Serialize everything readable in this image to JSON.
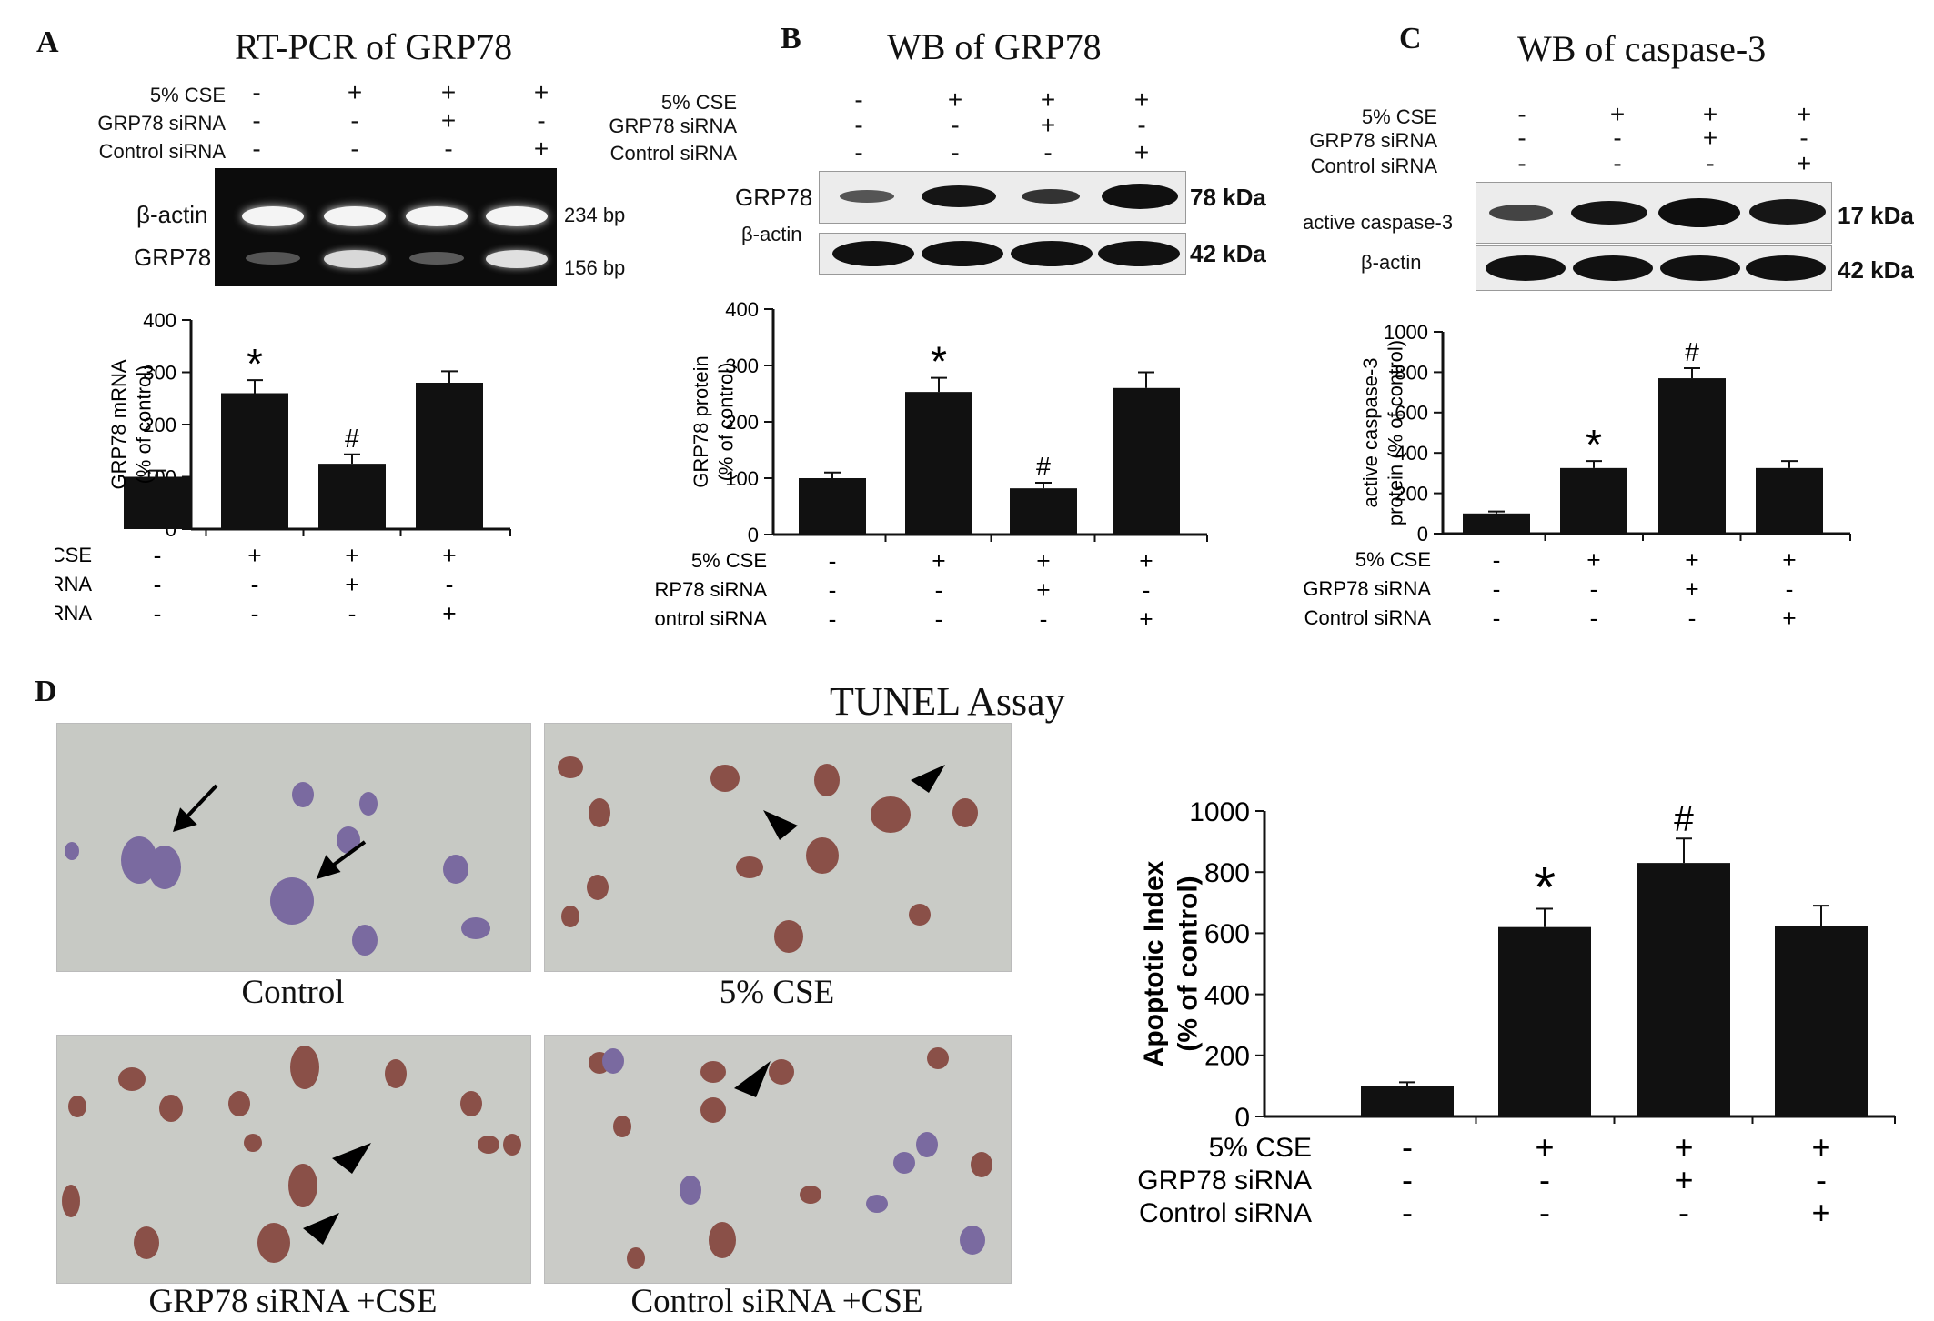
{
  "panels": {
    "A": {
      "letter": "A",
      "title": "RT-PCR of GRP78"
    },
    "B": {
      "letter": "B",
      "title": "WB of GRP78"
    },
    "C": {
      "letter": "C",
      "title": "WB of caspase-3"
    },
    "D": {
      "letter": "D",
      "title": "TUNEL   Assay"
    }
  },
  "conditions": {
    "rows": [
      "5% CSE",
      "GRP78 siRNA",
      "Control siRNA"
    ],
    "signs": [
      [
        "-",
        "+",
        "+",
        "+"
      ],
      [
        "-",
        "-",
        "+",
        "-"
      ],
      [
        "-",
        "-",
        "-",
        "+"
      ]
    ]
  },
  "gelA": {
    "lanes": [
      "β-actin",
      "GRP78"
    ],
    "sizes": [
      "234 bp",
      "156 bp"
    ]
  },
  "blotB": {
    "lanes": [
      "GRP78",
      "β-actin"
    ],
    "sizes": [
      "78 kDa",
      "42 kDa"
    ]
  },
  "blotC": {
    "lanes": [
      "active caspase-3",
      "β-actin"
    ],
    "sizes": [
      "17 kDa",
      "42 kDa"
    ]
  },
  "micrographs": {
    "captions": [
      "Control",
      "5% CSE",
      "GRP78 siRNA +CSE",
      "Control siRNA +CSE"
    ]
  },
  "colors": {
    "bar": "#111111",
    "nucleus_blue": "#7a6aa0",
    "nucleus_brown": "#8a5048",
    "background": "#c9cbc7"
  },
  "chart_data": [
    {
      "type": "bar",
      "panel": "A",
      "categories": [
        "1",
        "2",
        "3",
        "4"
      ],
      "values": [
        100,
        260,
        125,
        280
      ],
      "errors": [
        12,
        25,
        18,
        22
      ],
      "annotations": [
        "",
        "*",
        "#",
        ""
      ],
      "ylabel": "GRP78 mRNA\n(% of control)",
      "ylim": [
        0,
        400
      ],
      "yticks": [
        0,
        100,
        200,
        300,
        400
      ]
    },
    {
      "type": "bar",
      "panel": "B",
      "categories": [
        "1",
        "2",
        "3",
        "4"
      ],
      "values": [
        100,
        253,
        82,
        260
      ],
      "errors": [
        10,
        25,
        10,
        28
      ],
      "annotations": [
        "",
        "*",
        "#",
        ""
      ],
      "ylabel": "GRP78 protein\n(% of control)",
      "ylim": [
        0,
        400
      ],
      "yticks": [
        0,
        100,
        200,
        300,
        400
      ]
    },
    {
      "type": "bar",
      "panel": "C",
      "categories": [
        "1",
        "2",
        "3",
        "4"
      ],
      "values": [
        100,
        325,
        770,
        325
      ],
      "errors": [
        10,
        35,
        50,
        35
      ],
      "annotations": [
        "",
        "*",
        "#",
        ""
      ],
      "ylabel": "active caspase-3\nprotein (% of control)",
      "ylim": [
        0,
        1000
      ],
      "yticks": [
        0,
        200,
        400,
        600,
        800,
        1000
      ]
    },
    {
      "type": "bar",
      "panel": "D",
      "categories": [
        "1",
        "2",
        "3",
        "4"
      ],
      "values": [
        100,
        620,
        830,
        625
      ],
      "errors": [
        12,
        60,
        80,
        65
      ],
      "annotations": [
        "",
        "*",
        "#",
        ""
      ],
      "ylabel": "Apoptotic Index\n(% of control)",
      "ylim": [
        0,
        1000
      ],
      "yticks": [
        0,
        200,
        400,
        600,
        800,
        1000
      ]
    }
  ]
}
